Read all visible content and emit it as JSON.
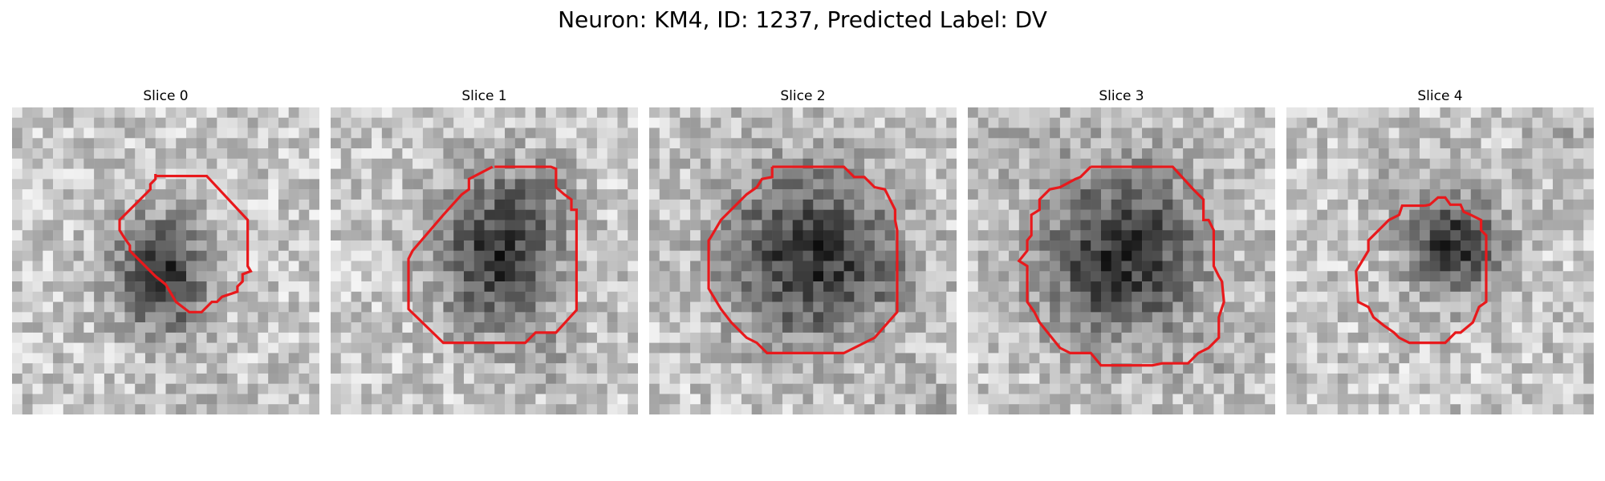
{
  "figure": {
    "title": "Neuron: KM4, ID: 1237, Predicted Label: DV"
  },
  "panels": [
    {
      "title": "Slice 0",
      "blob": [
        0.48,
        0.53,
        0.17,
        0.2
      ],
      "contour_color": "#e8191c"
    },
    {
      "title": "Slice 1",
      "blob": [
        0.55,
        0.48,
        0.22,
        0.28
      ],
      "contour_color": "#e8191c"
    },
    {
      "title": "Slice 2",
      "blob": [
        0.52,
        0.48,
        0.3,
        0.32
      ],
      "contour_color": "#e8191c"
    },
    {
      "title": "Slice 3",
      "blob": [
        0.5,
        0.48,
        0.3,
        0.32
      ],
      "contour_color": "#e8191c"
    },
    {
      "title": "Slice 4",
      "blob": [
        0.55,
        0.45,
        0.18,
        0.18
      ],
      "contour_color": "#e8191c"
    }
  ]
}
